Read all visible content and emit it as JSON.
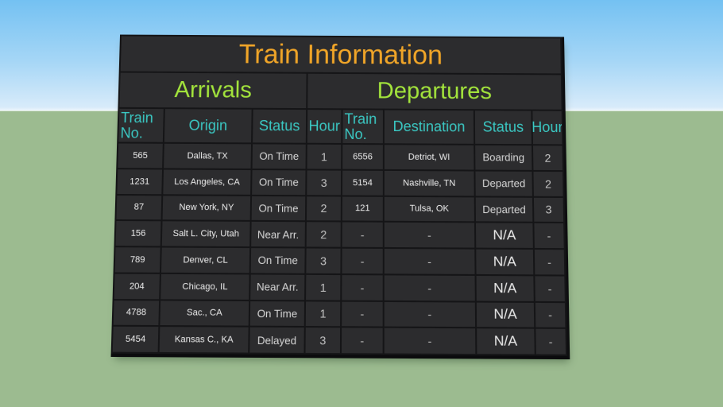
{
  "board": {
    "title": "Train Information",
    "sections": {
      "arrivals": "Arrivals",
      "departures": "Departures"
    },
    "arrivals": {
      "headers": [
        "Train No.",
        "Origin",
        "Status",
        "Hour"
      ],
      "rows": [
        {
          "train_no": "565",
          "origin": "Dallas, TX",
          "status": "On Time",
          "hour": "1"
        },
        {
          "train_no": "1231",
          "origin": "Los Angeles, CA",
          "status": "On Time",
          "hour": "3"
        },
        {
          "train_no": "87",
          "origin": "New York, NY",
          "status": "On Time",
          "hour": "2"
        },
        {
          "train_no": "156",
          "origin": "Salt L. City, Utah",
          "status": "Near Arr.",
          "hour": "2"
        },
        {
          "train_no": "789",
          "origin": "Denver, CL",
          "status": "On Time",
          "hour": "3"
        },
        {
          "train_no": "204",
          "origin": "Chicago, IL",
          "status": "Near Arr.",
          "hour": "1"
        },
        {
          "train_no": "4788",
          "origin": "Sac., CA",
          "status": "On Time",
          "hour": "1"
        },
        {
          "train_no": "5454",
          "origin": "Kansas C., KA",
          "status": "Delayed",
          "hour": "3"
        }
      ]
    },
    "departures": {
      "headers": [
        "Train No.",
        "Destination",
        "Status",
        "Hour"
      ],
      "rows": [
        {
          "train_no": "6556",
          "destination": "Detriot, WI",
          "status": "Boarding",
          "hour": "2"
        },
        {
          "train_no": "5154",
          "destination": "Nashville, TN",
          "status": "Departed",
          "hour": "2"
        },
        {
          "train_no": "121",
          "destination": "Tulsa, OK",
          "status": "Departed",
          "hour": "3"
        },
        {
          "train_no": "-",
          "destination": "-",
          "status": "N/A",
          "hour": "-"
        },
        {
          "train_no": "-",
          "destination": "-",
          "status": "N/A",
          "hour": "-"
        },
        {
          "train_no": "-",
          "destination": "-",
          "status": "N/A",
          "hour": "-"
        },
        {
          "train_no": "-",
          "destination": "-",
          "status": "N/A",
          "hour": "-"
        },
        {
          "train_no": "-",
          "destination": "-",
          "status": "N/A",
          "hour": "-"
        }
      ]
    },
    "colors": {
      "title": "#f0a528",
      "section": "#a3e43c",
      "header": "#3bc8c3",
      "text": "#ededed",
      "muted": "#d6d6d6",
      "cellBg": "#2c2c2e",
      "frame": "#151517",
      "skyTop": "#74c1f2",
      "skyMid": "#a5d6f6",
      "skyBottom": "#d8ebfa",
      "ground": "#9cbb90"
    }
  }
}
